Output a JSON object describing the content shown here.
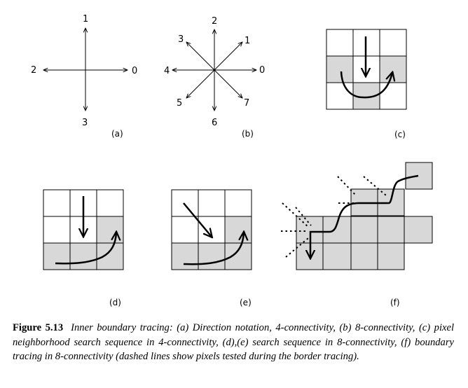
{
  "panels": {
    "a": {
      "label": "(a)",
      "direction_labels": [
        "0",
        "1",
        "2",
        "3"
      ]
    },
    "b": {
      "label": "(b)",
      "direction_labels": [
        "0",
        "1",
        "2",
        "3",
        "4",
        "5",
        "6",
        "7"
      ]
    },
    "c": {
      "label": "(c)"
    },
    "d": {
      "label": "(d)"
    },
    "e": {
      "label": "(e)"
    },
    "f": {
      "label": "(f)"
    }
  },
  "caption": {
    "figure_label": "Figure 5.13",
    "text": "Inner boundary tracing: (a) Direction notation, 4-connectivity, (b) 8-connectivity, (c) pixel neighborhood search sequence in 4-connectivity, (d),(e) search sequence in 8-connectivity, (f) boundary tracing in 8-connectivity (dashed lines show pixels tested during the border tracing)."
  },
  "colors": {
    "object_pixel": "#d8d8d8",
    "background_pixel": "#ffffff",
    "ink": "#000000"
  }
}
